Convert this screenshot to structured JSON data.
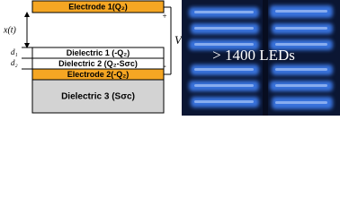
{
  "diagram": {
    "layers": [
      {
        "label": "Electrode 1(Q₂)"
      },
      {
        "label": "Dielectric 1 (-Q₂)"
      },
      {
        "label": "Dielectric 2 (Q₂-Sσc)"
      },
      {
        "label": "Electrode 2(-Q₂)"
      },
      {
        "label": "Dielectric 3 (Sσc)"
      }
    ],
    "gap_label": "x(t)",
    "thickness_labels": [
      "d₁",
      "d₂"
    ],
    "voltage": {
      "label": "V",
      "plus": "+",
      "minus": "-"
    },
    "photo_caption": "> 1400 LEDs"
  }
}
